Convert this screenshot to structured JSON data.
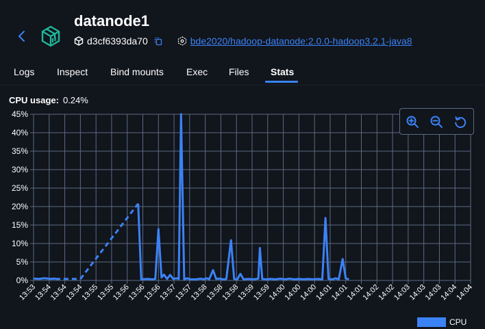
{
  "header": {
    "title": "datanode1",
    "container_id": "d3cf6393da70",
    "image": "bde2020/hadoop-datanode:2.0.0-hadoop3.2.1-java8"
  },
  "tabs": [
    "Logs",
    "Inspect",
    "Bind mounts",
    "Exec",
    "Files",
    "Stats"
  ],
  "active_tab": "Stats",
  "stats": {
    "cpu_label": "CPU usage:",
    "cpu_value": "0.24%"
  },
  "colors": {
    "accent": "#3b82f6",
    "background": "#11151c",
    "grid": "#5a6c85"
  },
  "icons": [
    "back-arrow-icon",
    "container-icon",
    "cube-icon",
    "copy-icon",
    "image-icon",
    "zoom-in-icon",
    "zoom-out-icon",
    "reset-icon"
  ],
  "chart_data": {
    "type": "line",
    "ylim": [
      0,
      45
    ],
    "y_ticks": [
      "0%",
      "5%",
      "10%",
      "15%",
      "20%",
      "25%",
      "30%",
      "35%",
      "40%",
      "45%"
    ],
    "x_labels": [
      "13:53",
      "13:54",
      "13:54",
      "13:54",
      "13:55",
      "13:55",
      "13:56",
      "13:56",
      "13:56",
      "13:57",
      "13:57",
      "13:58",
      "13:58",
      "13:58",
      "13:59",
      "13:59",
      "14:00",
      "14:00",
      "14:00",
      "14:01",
      "14:01",
      "14:01",
      "14:02",
      "14:02",
      "14:03",
      "14:03",
      "14:03",
      "14:04",
      "14:04"
    ],
    "legend": "CPU",
    "grid": true,
    "series": [
      {
        "name": "CPU",
        "segments": [
          {
            "dashed": false,
            "points": [
              [
                0.0,
                0.5
              ],
              [
                0.35,
                0.4
              ],
              [
                0.7,
                0.6
              ],
              [
                1.05,
                0.4
              ],
              [
                1.4,
                0.5
              ]
            ]
          },
          {
            "dashed": true,
            "points": [
              [
                1.4,
                0.4
              ],
              [
                3.0,
                0.4
              ]
            ]
          },
          {
            "dashed": true,
            "points": [
              [
                3.0,
                0.4
              ],
              [
                6.7,
                20.8
              ]
            ]
          },
          {
            "dashed": false,
            "points": [
              [
                6.7,
                20.8
              ],
              [
                6.9,
                0.3
              ],
              [
                7.3,
                0.4
              ],
              [
                7.6,
                0.3
              ],
              [
                7.8,
                0.4
              ],
              [
                8.0,
                13.9
              ],
              [
                8.2,
                0.8
              ],
              [
                8.35,
                1.6
              ],
              [
                8.55,
                0.4
              ],
              [
                8.75,
                1.5
              ],
              [
                8.95,
                0.4
              ],
              [
                9.15,
                0.6
              ],
              [
                9.3,
                0.4
              ],
              [
                9.45,
                45.0
              ],
              [
                9.65,
                0.3
              ],
              [
                9.85,
                0.6
              ],
              [
                10.05,
                0.3
              ],
              [
                10.4,
                0.3
              ],
              [
                10.7,
                0.5
              ],
              [
                10.9,
                0.3
              ],
              [
                11.1,
                0.6
              ],
              [
                11.25,
                0.3
              ],
              [
                11.5,
                2.8
              ],
              [
                11.7,
                0.4
              ],
              [
                11.9,
                0.5
              ],
              [
                12.15,
                0.3
              ],
              [
                12.35,
                0.4
              ],
              [
                12.65,
                10.9
              ],
              [
                12.85,
                0.4
              ],
              [
                13.05,
                0.3
              ],
              [
                13.25,
                1.8
              ],
              [
                13.45,
                0.3
              ],
              [
                13.75,
                0.4
              ],
              [
                14.1,
                0.3
              ],
              [
                14.4,
                0.5
              ],
              [
                14.5,
                8.8
              ],
              [
                14.65,
                0.4
              ],
              [
                14.9,
                0.3
              ],
              [
                15.2,
                0.4
              ],
              [
                15.5,
                0.3
              ],
              [
                15.8,
                0.5
              ],
              [
                16.1,
                0.3
              ],
              [
                16.4,
                0.5
              ],
              [
                16.7,
                0.3
              ],
              [
                17.0,
                0.4
              ],
              [
                17.3,
                0.3
              ],
              [
                17.6,
                0.4
              ],
              [
                17.9,
                0.3
              ],
              [
                18.2,
                0.4
              ],
              [
                18.5,
                0.3
              ],
              [
                18.7,
                16.9
              ],
              [
                18.9,
                0.4
              ],
              [
                19.15,
                0.3
              ],
              [
                19.35,
                0.6
              ],
              [
                19.55,
                0.3
              ],
              [
                19.8,
                5.8
              ],
              [
                20.0,
                0.6
              ],
              [
                20.2,
                0.3
              ]
            ]
          }
        ]
      }
    ]
  }
}
